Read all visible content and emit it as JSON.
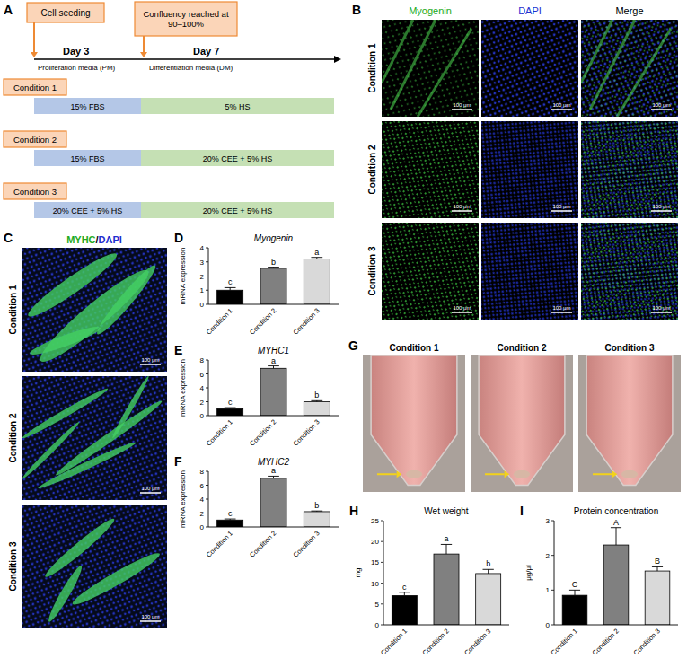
{
  "chart_data": [
    {
      "panel_label": "D",
      "type": "bar",
      "title": "Myogenin",
      "y_label": "mRNA expression",
      "categories": [
        "Condition 1",
        "Condition 2",
        "Condition 3"
      ],
      "values": [
        1.0,
        2.55,
        3.2
      ],
      "errors": [
        0.18,
        0.08,
        0.12
      ],
      "significance": [
        "c",
        "b",
        "a"
      ],
      "colors": [
        "#000000",
        "#808080",
        "#d9d9d9"
      ],
      "ylim": [
        0,
        4
      ],
      "yticks": [
        0,
        1,
        2,
        3,
        4
      ]
    },
    {
      "panel_label": "E",
      "type": "bar",
      "title": "MYHC1",
      "y_label": "mRNA expression",
      "categories": [
        "Condition 1",
        "Condition 2",
        "Condition 3"
      ],
      "values": [
        1.0,
        6.8,
        2.0
      ],
      "errors": [
        0.15,
        0.35,
        0.15
      ],
      "significance": [
        "c",
        "a",
        "b"
      ],
      "colors": [
        "#000000",
        "#808080",
        "#d9d9d9"
      ],
      "ylim": [
        0,
        8
      ],
      "yticks": [
        0,
        2,
        4,
        6,
        8
      ]
    },
    {
      "panel_label": "F",
      "type": "bar",
      "title": "MYHC2",
      "y_label": "mRNA expression",
      "categories": [
        "Condition 1",
        "Condition 2",
        "Condition 3"
      ],
      "values": [
        1.0,
        7.0,
        2.2
      ],
      "errors": [
        0.15,
        0.3,
        0.1
      ],
      "significance": [
        "c",
        "a",
        "b"
      ],
      "colors": [
        "#000000",
        "#808080",
        "#d9d9d9"
      ],
      "ylim": [
        0,
        8
      ],
      "yticks": [
        0,
        2,
        4,
        6,
        8
      ]
    },
    {
      "panel_label": "H",
      "type": "bar",
      "title": "Wet weight",
      "y_label": "mg",
      "categories": [
        "Condition 1",
        "Condition 2",
        "Condition 3"
      ],
      "values": [
        7.0,
        17.0,
        12.3
      ],
      "errors": [
        0.8,
        2.3,
        1.0
      ],
      "significance": [
        "c",
        "a",
        "b"
      ],
      "colors": [
        "#000000",
        "#808080",
        "#d9d9d9"
      ],
      "ylim": [
        0,
        25
      ],
      "yticks": [
        0,
        5,
        10,
        15,
        20,
        25
      ]
    },
    {
      "panel_label": "I",
      "type": "bar",
      "title": "Protein concentration",
      "y_label": "μg/μl",
      "categories": [
        "Condition 1",
        "Condition 2",
        "Condition 3"
      ],
      "values": [
        0.85,
        2.3,
        1.55
      ],
      "errors": [
        0.15,
        0.5,
        0.12
      ],
      "significance": [
        "C",
        "A",
        "B"
      ],
      "colors": [
        "#000000",
        "#808080",
        "#d9d9d9"
      ],
      "ylim": [
        0,
        3
      ],
      "yticks": [
        0,
        1,
        2,
        3
      ]
    }
  ],
  "panel_a": {
    "label": "A",
    "cell_seeding": "Cell seeding",
    "confluency": "Confluency reached at 90–100%",
    "day3": "Day 3",
    "day7": "Day 7",
    "pm": "Proliferation media (PM)",
    "dm": "Differentiation media (DM)",
    "conditions": [
      {
        "name": "Condition 1",
        "pm": "15% FBS",
        "dm": "5% HS"
      },
      {
        "name": "Condition 2",
        "pm": "15% FBS",
        "dm": "20% CEE + 5% HS"
      },
      {
        "name": "Condition 3",
        "pm": "20% CEE + 5% HS",
        "dm": "20% CEE + 5% HS"
      }
    ]
  },
  "panel_b": {
    "label": "B",
    "columns": [
      "Myogenin",
      "DAPI",
      "Merge"
    ],
    "rows": [
      "Condition 1",
      "Condition 2",
      "Condition 3"
    ],
    "scale_bar": "100 μm"
  },
  "panel_c": {
    "label": "C",
    "title_parts": [
      "MYHC",
      "/",
      "DAPI"
    ],
    "rows": [
      "Condition 1",
      "Condition 2",
      "Condition 3"
    ],
    "scale_bar": "100 μm"
  },
  "panel_g": {
    "label": "G",
    "conditions": [
      "Condition 1",
      "Condition 2",
      "Condition 3"
    ]
  }
}
